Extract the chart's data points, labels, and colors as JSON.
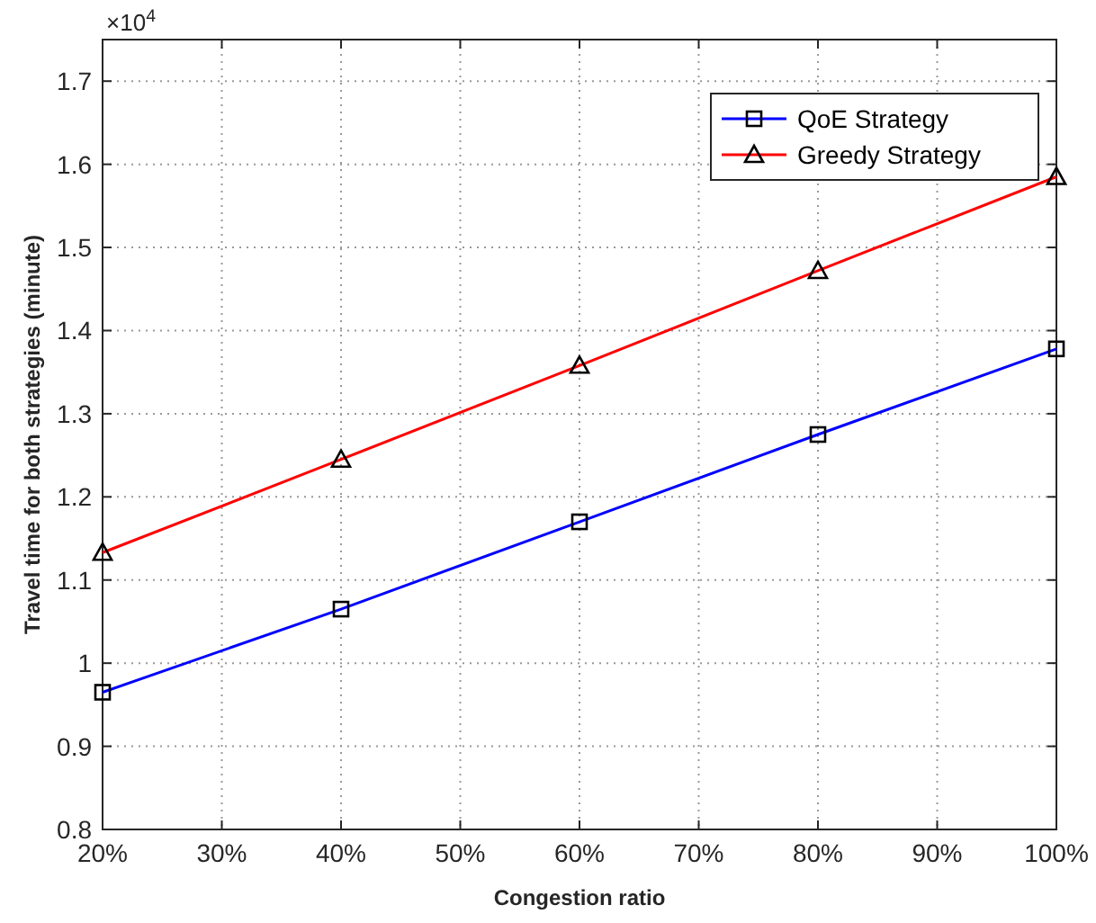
{
  "chart_data": {
    "type": "line",
    "xlabel": "Congestion ratio",
    "ylabel": "Travel time for both strategies (minute)",
    "annotations": [
      "×10$^{4}$"
    ],
    "x": [
      20,
      40,
      60,
      80,
      100
    ],
    "series": [
      {
        "name": "QoE Strategy",
        "color": "#0000ff",
        "marker": "square",
        "values": [
          0.965,
          1.065,
          1.17,
          1.275,
          1.378
        ]
      },
      {
        "name": "Greedy Strategy",
        "color": "#ff0000",
        "marker": "triangle",
        "values": [
          1.133,
          1.245,
          1.358,
          1.472,
          1.585
        ]
      }
    ],
    "xlim": [
      20,
      100
    ],
    "xticks": [
      {
        "value": 20,
        "label": "20%"
      },
      {
        "value": 30,
        "label": "30%"
      },
      {
        "value": 40,
        "label": "40%"
      },
      {
        "value": 50,
        "label": "50%"
      },
      {
        "value": 60,
        "label": "60%"
      },
      {
        "value": 70,
        "label": "70%"
      },
      {
        "value": 80,
        "label": "80%"
      },
      {
        "value": 90,
        "label": "90%"
      },
      {
        "value": 100,
        "label": "100%"
      }
    ],
    "ylim": [
      0.8,
      1.75
    ],
    "yticks": [
      0.8,
      0.9,
      1,
      1.1,
      1.2,
      1.3,
      1.4,
      1.5,
      1.6,
      1.7
    ],
    "grid": true,
    "legend": "top right",
    "line_style": "solid"
  }
}
